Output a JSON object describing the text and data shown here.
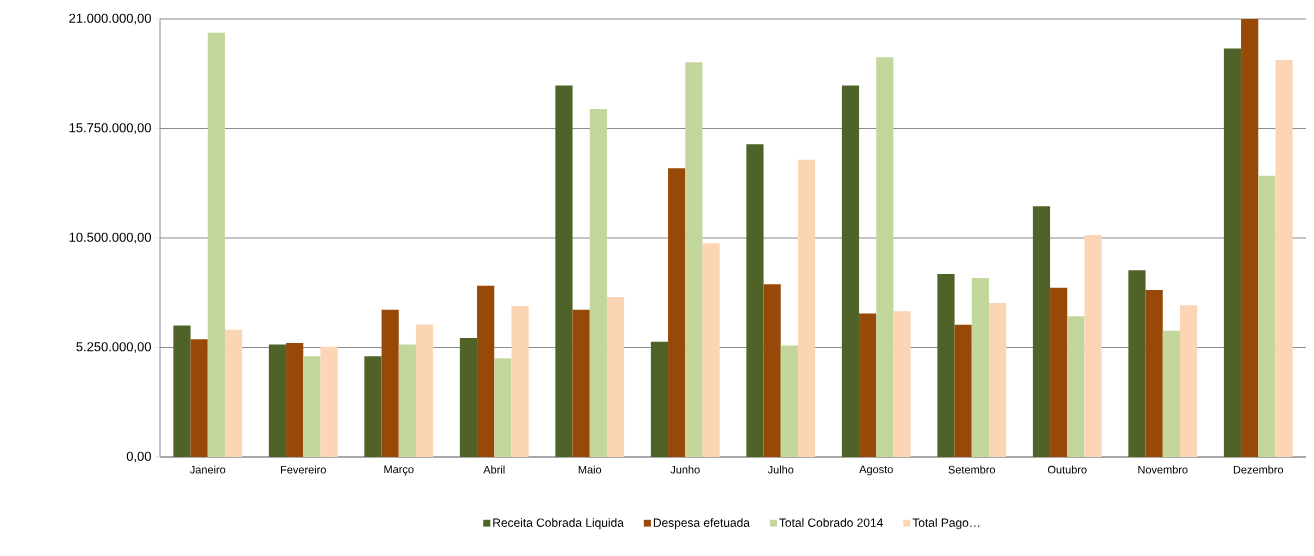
{
  "chart_data": {
    "type": "bar",
    "categories": [
      "Janeiro",
      "Fevereiro",
      "Março",
      "Abril",
      "Maio",
      "Junho",
      "Julho",
      "Agosto",
      "Setembro",
      "Outubro",
      "Novembro",
      "Dezembro"
    ],
    "series": [
      {
        "name": "Receita Cobrada Liquida",
        "color": "#4f6228",
        "values": [
          6300000,
          5390000,
          4830000,
          5710000,
          17810000,
          5530000,
          15000000,
          17810000,
          8780000,
          12020000,
          8950000,
          19590000
        ]
      },
      {
        "name": "Despesa efetuada",
        "color": "#984807",
        "values": [
          5650000,
          5470000,
          7060000,
          8210000,
          7060000,
          13840000,
          8280000,
          6880000,
          6340000,
          8120000,
          8010000,
          21000000
        ]
      },
      {
        "name": "Total Cobrado 2014",
        "color": "#c3d69b",
        "values": [
          20340000,
          4830000,
          5390000,
          4730000,
          16680000,
          18930000,
          5340000,
          19170000,
          8580000,
          6750000,
          6050000,
          13480000
        ]
      },
      {
        "name": "Total Pago…",
        "color": "#fcd5b5",
        "values": [
          6100000,
          5290000,
          6350000,
          7240000,
          7670000,
          10250000,
          14250000,
          6990000,
          7380000,
          10640000,
          7270000,
          19030000
        ]
      }
    ],
    "ylim": [
      0,
      21000000
    ],
    "yticks": [
      {
        "value": 0,
        "label": "0,00"
      },
      {
        "value": 5250000,
        "label": "5.250.000,00"
      },
      {
        "value": 10500000,
        "label": "10.500.000,00"
      },
      {
        "value": 15750000,
        "label": "15.750.000,00"
      },
      {
        "value": 21000000,
        "label": "21.000.000,00"
      }
    ],
    "grid": "y",
    "legend": "bottom"
  }
}
